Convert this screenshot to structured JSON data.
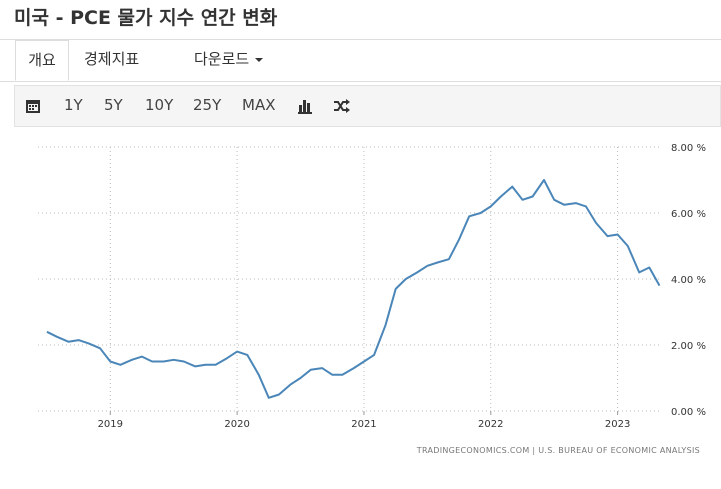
{
  "header": {
    "title": "미국 - PCE 물가 지수 연간 변화"
  },
  "tabs": [
    "개요",
    "경제지표",
    "다운로드"
  ],
  "toolbar": [
    "1Y",
    "5Y",
    "10Y",
    "25Y",
    "MAX"
  ],
  "chart_data": {
    "type": "line",
    "source": "TRADINGECONOMICS.COM | U.S. BUREAU OF ECONOMIC ANALYSIS",
    "color": "#4a86b8",
    "x": [
      2018.5,
      2018.58,
      2018.67,
      2018.75,
      2018.83,
      2018.92,
      2019.0,
      2019.08,
      2019.17,
      2019.25,
      2019.33,
      2019.42,
      2019.5,
      2019.58,
      2019.67,
      2019.75,
      2019.83,
      2019.92,
      2020.0,
      2020.08,
      2020.17,
      2020.25,
      2020.33,
      2020.42,
      2020.5,
      2020.58,
      2020.67,
      2020.75,
      2020.83,
      2020.92,
      2021.0,
      2021.08,
      2021.17,
      2021.25,
      2021.33,
      2021.42,
      2021.5,
      2021.58,
      2021.67,
      2021.75,
      2021.83,
      2021.92,
      2022.0,
      2022.08,
      2022.17,
      2022.25,
      2022.33,
      2022.42,
      2022.5,
      2022.58,
      2022.67,
      2022.75,
      2022.83,
      2022.92,
      2023.0,
      2023.08,
      2023.17,
      2023.25,
      2023.33
    ],
    "values": [
      2.4,
      2.25,
      2.1,
      2.15,
      2.05,
      1.9,
      1.5,
      1.4,
      1.55,
      1.65,
      1.5,
      1.5,
      1.55,
      1.5,
      1.35,
      1.4,
      1.4,
      1.6,
      1.8,
      1.7,
      1.1,
      0.4,
      0.5,
      0.8,
      1.0,
      1.25,
      1.3,
      1.1,
      1.1,
      1.3,
      1.5,
      1.7,
      2.6,
      3.7,
      4.0,
      4.2,
      4.4,
      4.5,
      4.6,
      5.2,
      5.9,
      6.0,
      6.2,
      6.5,
      6.8,
      6.4,
      6.5,
      7.0,
      6.4,
      6.25,
      6.3,
      6.2,
      5.7,
      5.3,
      5.35,
      5.0,
      4.2,
      4.35,
      3.8
    ],
    "xlim": [
      2018.43,
      2023.35
    ],
    "xticks": [
      2019,
      2020,
      2021,
      2022,
      2023
    ],
    "ylim": [
      0,
      8
    ],
    "yticks": [
      {
        "value": 0,
        "label": "0.00 %"
      },
      {
        "value": 2,
        "label": "2.00 %"
      },
      {
        "value": 4,
        "label": "4.00 %"
      },
      {
        "value": 6,
        "label": "6.00 %"
      },
      {
        "value": 8,
        "label": "8.00 %"
      }
    ],
    "grid": true
  }
}
